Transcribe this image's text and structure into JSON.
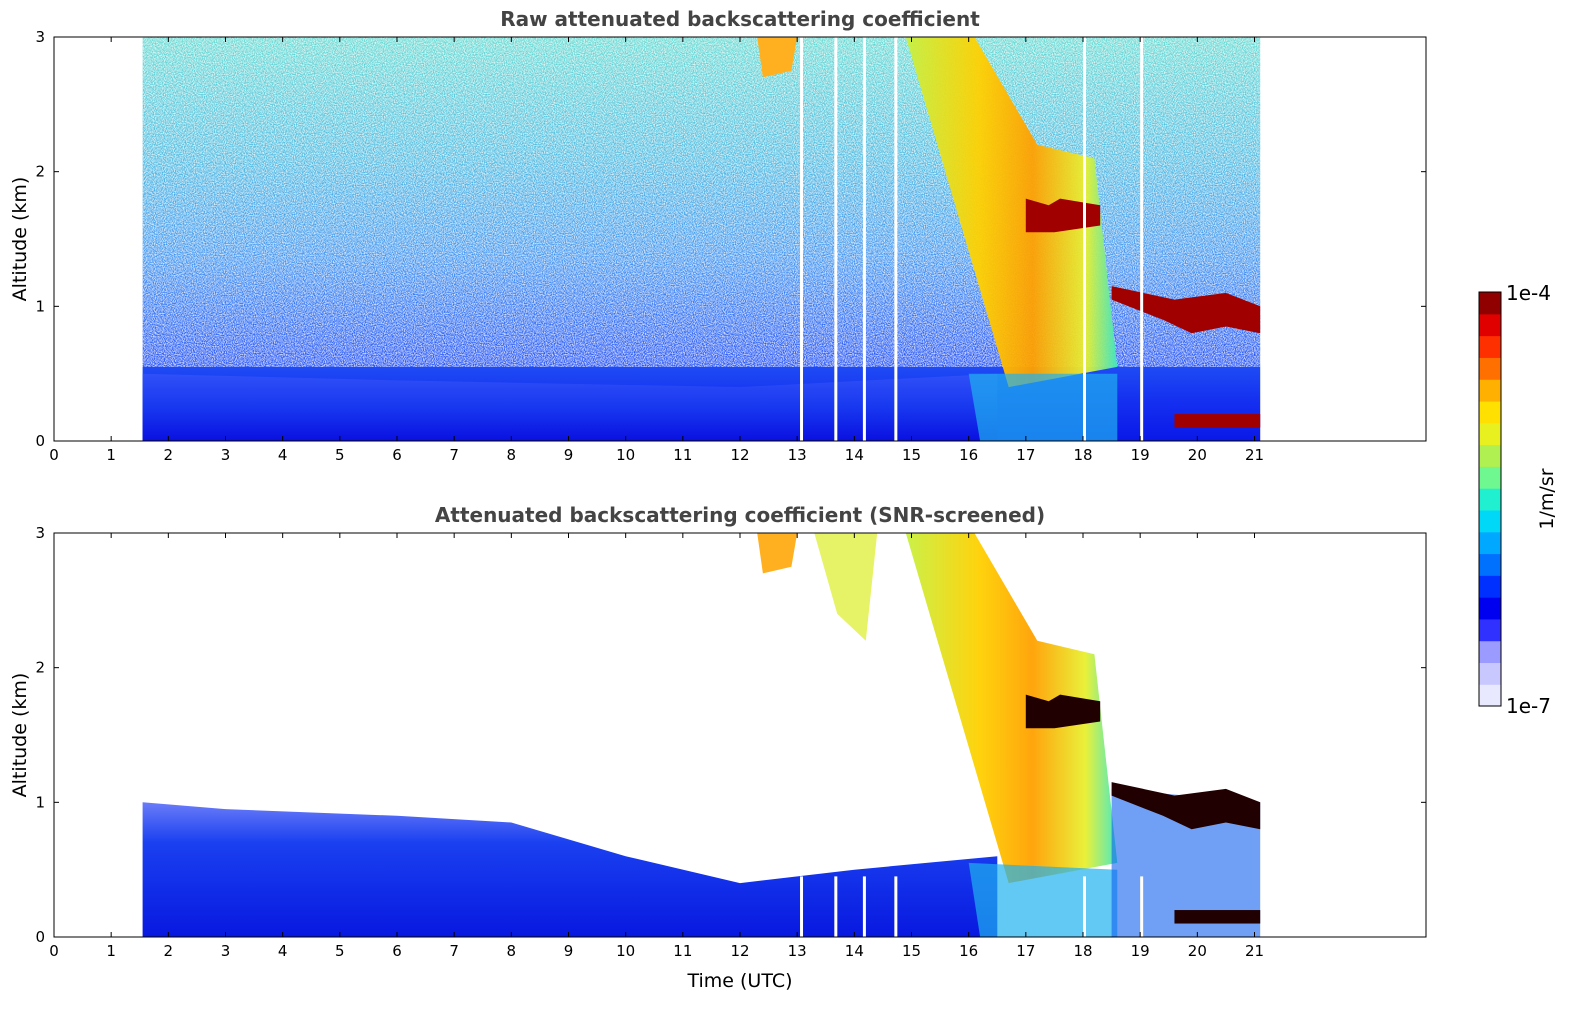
{
  "chart_data": [
    {
      "type": "heatmap",
      "title": "Raw attenuated backscattering coefficient",
      "xlabel": "",
      "ylabel": "Altitude (km)",
      "xlim": [
        0,
        24
      ],
      "ylim": [
        0,
        3
      ],
      "x_ticks": [
        "0",
        "1",
        "2",
        "3",
        "4",
        "5",
        "6",
        "7",
        "8",
        "9",
        "10",
        "11",
        "12",
        "13",
        "14",
        "15",
        "16",
        "17",
        "18",
        "19",
        "20",
        "21"
      ],
      "y_ticks": [
        "0",
        "1",
        "2",
        "3"
      ],
      "data_time_range": [
        1.55,
        21.1
      ],
      "gap_times": [
        13.05,
        13.65,
        14.15,
        14.7,
        18.0,
        19.0
      ],
      "color_scale": "log",
      "features": [
        {
          "name": "boundary layer",
          "x": [
            1.55,
            16.5
          ],
          "y": [
            0,
            0.5
          ],
          "level": "low"
        },
        {
          "name": "elevated aerosol layer",
          "x": [
            15.0,
            18.6
          ],
          "y": [
            0.4,
            3.0
          ],
          "level": "high"
        },
        {
          "name": "cloud",
          "x": [
            17.0,
            18.3
          ],
          "y": [
            1.55,
            1.8
          ],
          "level": "saturated"
        },
        {
          "name": "cloud",
          "x": [
            18.5,
            21.1
          ],
          "y": [
            0.8,
            1.15
          ],
          "level": "saturated"
        },
        {
          "name": "low cloud",
          "x": [
            19.6,
            21.1
          ],
          "y": [
            0.1,
            0.2
          ],
          "level": "saturated"
        }
      ],
      "grid": false
    },
    {
      "type": "heatmap",
      "title": "Attenuated backscattering coefficient (SNR-screened)",
      "xlabel": "Time (UTC)",
      "ylabel": "Altitude (km)",
      "xlim": [
        0,
        24
      ],
      "ylim": [
        0,
        3
      ],
      "x_ticks": [
        "0",
        "1",
        "2",
        "3",
        "4",
        "5",
        "6",
        "7",
        "8",
        "9",
        "10",
        "11",
        "12",
        "13",
        "14",
        "15",
        "16",
        "17",
        "18",
        "19",
        "20",
        "21"
      ],
      "y_ticks": [
        "0",
        "1",
        "2",
        "3"
      ],
      "data_time_range": [
        1.55,
        21.1
      ],
      "gap_times": [
        13.05,
        13.65,
        14.15,
        14.7,
        18.0,
        19.0
      ],
      "color_scale": "log",
      "grid": false
    }
  ],
  "colorbar": {
    "label": "1/m/sr",
    "min_label": "1e-7",
    "max_label": "1e-4",
    "colors": [
      "#e8e8ff",
      "#c8c8ff",
      "#9a9aff",
      "#3030ff",
      "#0000f0",
      "#0030ff",
      "#0070ff",
      "#00a8ff",
      "#00d8f8",
      "#20f0d0",
      "#70f890",
      "#b0f050",
      "#e8f020",
      "#ffe000",
      "#ffb000",
      "#ff7000",
      "#ff3000",
      "#e00000",
      "#900000"
    ]
  }
}
